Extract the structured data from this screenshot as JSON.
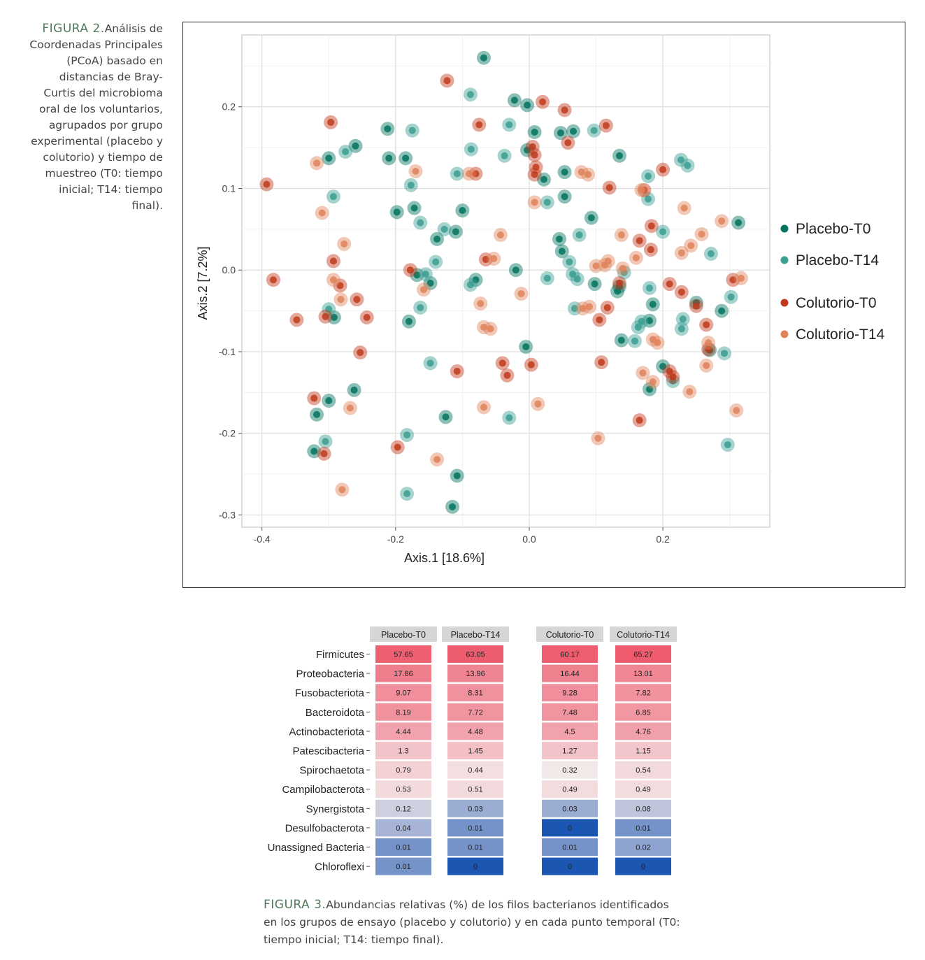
{
  "figure2": {
    "label": "FIGURA 2.",
    "caption": "Análisis de Coordenadas Principales (PCoA) basado en distancias de Bray-Curtis del microbioma oral de los voluntarios, agrupados por grupo experimental (placebo y colutorio) y tiempo de muestreo (T0: tiempo inicial; T14: tiempo final)."
  },
  "figure3": {
    "label": "FIGURA 3.",
    "caption": "Abundancias relativas (%) de los filos bacterianos identificados en los grupos de ensayo (placebo y colutorio) y en cada punto temporal (T0: tiempo inicial; T14: tiempo final)."
  },
  "colors": {
    "Placebo-T0": "#00735f",
    "Placebo-T14": "#3a9e92",
    "Colutorio-T0": "#c0391b",
    "Colutorio-T14": "#e0825a",
    "heat_high": "#ee5b6e",
    "heat_mid": "#f3e8e8",
    "heat_low": "#1c56b3"
  },
  "chart_data": [
    {
      "type": "scatter",
      "title": "",
      "xlabel": "Axis.1   [18.6%]",
      "ylabel": "Axis.2   [7.2%]",
      "xlim": [
        -0.43,
        0.36
      ],
      "ylim": [
        -0.315,
        0.288
      ],
      "x_ticks": [
        -0.4,
        -0.2,
        0.0,
        0.2
      ],
      "x_tick_labels": [
        "-0.4",
        "-0.2",
        "0.0",
        "0.2"
      ],
      "y_ticks": [
        0.2,
        0.1,
        0.0,
        -0.1,
        -0.2,
        -0.3
      ],
      "y_tick_labels": [
        "0.2",
        "0.1",
        "0.0",
        "-0.1",
        "-0.2",
        "-0.3"
      ],
      "grid": true,
      "legend_position": "right",
      "series": [
        {
          "name": "Placebo-T0",
          "points": [
            [
              -0.068,
              0.26
            ],
            [
              -0.022,
              0.208
            ],
            [
              -0.003,
              0.202
            ],
            [
              0.008,
              0.169
            ],
            [
              0.047,
              0.168
            ],
            [
              0.066,
              0.17
            ],
            [
              -0.212,
              0.173
            ],
            [
              -0.26,
              0.152
            ],
            [
              -0.3,
              0.137
            ],
            [
              -0.21,
              0.137
            ],
            [
              -0.185,
              0.137
            ],
            [
              -0.003,
              0.147
            ],
            [
              0.135,
              0.14
            ],
            [
              0.022,
              0.111
            ],
            [
              0.053,
              0.12
            ],
            [
              0.053,
              0.09
            ],
            [
              -0.172,
              0.076
            ],
            [
              -0.198,
              0.071
            ],
            [
              -0.1,
              0.073
            ],
            [
              0.093,
              0.064
            ],
            [
              0.313,
              0.058
            ],
            [
              -0.11,
              0.047
            ],
            [
              -0.138,
              0.038
            ],
            [
              0.045,
              0.038
            ],
            [
              0.049,
              0.023
            ],
            [
              -0.02,
              0
            ],
            [
              -0.168,
              -0.006
            ],
            [
              -0.148,
              -0.016
            ],
            [
              -0.08,
              -0.012
            ],
            [
              0.098,
              -0.017
            ],
            [
              0.132,
              -0.026
            ],
            [
              0.135,
              -0.02
            ],
            [
              0.185,
              -0.042
            ],
            [
              0.25,
              -0.04
            ],
            [
              0.288,
              -0.05
            ],
            [
              -0.292,
              -0.058
            ],
            [
              -0.18,
              -0.063
            ],
            [
              0.18,
              -0.062
            ],
            [
              0.138,
              -0.086
            ],
            [
              -0.005,
              -0.094
            ],
            [
              0.27,
              -0.098
            ],
            [
              0.2,
              -0.118
            ],
            [
              -0.262,
              -0.147
            ],
            [
              0.18,
              -0.146
            ],
            [
              -0.3,
              -0.16
            ],
            [
              -0.318,
              -0.177
            ],
            [
              -0.125,
              -0.18
            ],
            [
              -0.322,
              -0.222
            ],
            [
              -0.108,
              -0.252
            ],
            [
              -0.115,
              -0.29
            ]
          ]
        },
        {
          "name": "Placebo-T14",
          "points": [
            [
              -0.088,
              0.215
            ],
            [
              -0.03,
              0.178
            ],
            [
              -0.175,
              0.171
            ],
            [
              0.097,
              0.171
            ],
            [
              -0.275,
              0.145
            ],
            [
              -0.087,
              0.148
            ],
            [
              -0.108,
              0.118
            ],
            [
              -0.037,
              0.14
            ],
            [
              0.227,
              0.135
            ],
            [
              0.237,
              0.128
            ],
            [
              -0.177,
              0.104
            ],
            [
              0.178,
              0.115
            ],
            [
              -0.293,
              0.09
            ],
            [
              0.178,
              0.087
            ],
            [
              0.027,
              0.083
            ],
            [
              -0.163,
              0.058
            ],
            [
              -0.127,
              0.05
            ],
            [
              0.075,
              0.043
            ],
            [
              0.2,
              0.047
            ],
            [
              0.272,
              0.02
            ],
            [
              -0.14,
              0.01
            ],
            [
              0.06,
              0.01
            ],
            [
              0.065,
              -0.005
            ],
            [
              0.072,
              -0.011
            ],
            [
              0.027,
              -0.01
            ],
            [
              -0.155,
              -0.005
            ],
            [
              -0.088,
              -0.018
            ],
            [
              0.142,
              -0.003
            ],
            [
              0.18,
              -0.022
            ],
            [
              -0.3,
              -0.048
            ],
            [
              -0.163,
              -0.046
            ],
            [
              0.068,
              -0.047
            ],
            [
              0.302,
              -0.033
            ],
            [
              0.23,
              -0.06
            ],
            [
              0.168,
              -0.063
            ],
            [
              0.163,
              -0.07
            ],
            [
              0.228,
              -0.072
            ],
            [
              0.158,
              -0.087
            ],
            [
              0.292,
              -0.102
            ],
            [
              -0.148,
              -0.114
            ],
            [
              0.215,
              -0.136
            ],
            [
              -0.305,
              -0.21
            ],
            [
              -0.183,
              -0.202
            ],
            [
              -0.03,
              -0.181
            ],
            [
              0.297,
              -0.214
            ],
            [
              -0.183,
              -0.274
            ]
          ]
        },
        {
          "name": "Colutorio-T0",
          "points": [
            [
              -0.123,
              0.232
            ],
            [
              0.02,
              0.206
            ],
            [
              0.053,
              0.196
            ],
            [
              -0.297,
              0.181
            ],
            [
              -0.075,
              0.178
            ],
            [
              0.115,
              0.177
            ],
            [
              0.058,
              0.156
            ],
            [
              0.005,
              0.151
            ],
            [
              0.008,
              0.141
            ],
            [
              0.01,
              0.126
            ],
            [
              0.008,
              0.117
            ],
            [
              -0.08,
              0.118
            ],
            [
              0.12,
              0.101
            ],
            [
              0.172,
              0.098
            ],
            [
              0.2,
              0.123
            ],
            [
              -0.393,
              0.105
            ],
            [
              0.183,
              0.054
            ],
            [
              0.165,
              0.036
            ],
            [
              0.182,
              0.025
            ],
            [
              -0.065,
              0.013
            ],
            [
              -0.293,
              0.011
            ],
            [
              -0.178,
              0
            ],
            [
              0.305,
              -0.012
            ],
            [
              -0.383,
              -0.012
            ],
            [
              -0.283,
              -0.019
            ],
            [
              0.21,
              -0.017
            ],
            [
              0.228,
              -0.027
            ],
            [
              0.135,
              -0.016
            ],
            [
              -0.258,
              -0.036
            ],
            [
              0.117,
              -0.046
            ],
            [
              0.25,
              -0.044
            ],
            [
              -0.305,
              -0.057
            ],
            [
              -0.243,
              -0.058
            ],
            [
              -0.348,
              -0.061
            ],
            [
              0.105,
              -0.061
            ],
            [
              0.265,
              -0.067
            ],
            [
              0.268,
              -0.097
            ],
            [
              -0.253,
              -0.101
            ],
            [
              -0.04,
              -0.114
            ],
            [
              0.003,
              -0.116
            ],
            [
              0.108,
              -0.113
            ],
            [
              -0.108,
              -0.124
            ],
            [
              -0.033,
              -0.129
            ],
            [
              0.21,
              -0.124
            ],
            [
              0.215,
              -0.131
            ],
            [
              -0.322,
              -0.157
            ],
            [
              0.165,
              -0.184
            ],
            [
              -0.197,
              -0.217
            ],
            [
              -0.307,
              -0.225
            ]
          ]
        },
        {
          "name": "Colutorio-T14",
          "points": [
            [
              -0.318,
              0.131
            ],
            [
              -0.17,
              0.121
            ],
            [
              -0.09,
              0.118
            ],
            [
              0.078,
              0.12
            ],
            [
              0.088,
              0.117
            ],
            [
              0.168,
              0.098
            ],
            [
              0.232,
              0.076
            ],
            [
              -0.31,
              0.07
            ],
            [
              0.008,
              0.083
            ],
            [
              0.288,
              0.06
            ],
            [
              0.258,
              0.044
            ],
            [
              0.138,
              0.043
            ],
            [
              -0.043,
              0.043
            ],
            [
              -0.277,
              0.032
            ],
            [
              0.228,
              0.021
            ],
            [
              0.242,
              0.03
            ],
            [
              0.16,
              0.015
            ],
            [
              0.1,
              0.005
            ],
            [
              0.113,
              0.006
            ],
            [
              0.118,
              0.011
            ],
            [
              -0.053,
              0.014
            ],
            [
              0.317,
              -0.01
            ],
            [
              -0.293,
              -0.012
            ],
            [
              -0.158,
              -0.024
            ],
            [
              -0.012,
              -0.029
            ],
            [
              0.14,
              0.002
            ],
            [
              -0.282,
              -0.036
            ],
            [
              -0.073,
              -0.041
            ],
            [
              0.08,
              -0.047
            ],
            [
              0.09,
              -0.045
            ],
            [
              -0.068,
              -0.07
            ],
            [
              -0.058,
              -0.072
            ],
            [
              0.185,
              -0.085
            ],
            [
              0.192,
              -0.089
            ],
            [
              0.268,
              -0.089
            ],
            [
              0.265,
              -0.117
            ],
            [
              0.17,
              -0.126
            ],
            [
              0.185,
              -0.137
            ],
            [
              -0.068,
              -0.168
            ],
            [
              0.013,
              -0.164
            ],
            [
              -0.268,
              -0.169
            ],
            [
              0.31,
              -0.172
            ],
            [
              0.24,
              -0.149
            ],
            [
              0.103,
              -0.206
            ],
            [
              -0.138,
              -0.232
            ],
            [
              -0.28,
              -0.269
            ]
          ]
        }
      ]
    },
    {
      "type": "heatmap",
      "title": "",
      "columns": [
        "Placebo-T0",
        "Placebo-T14",
        "Colutorio-T0",
        "Colutorio-T14"
      ],
      "rows": [
        "Firmicutes",
        "Proteobacteria",
        "Fusobacteriota",
        "Bacteroidota",
        "Actinobacteriota",
        "Patescibacteria",
        "Spirochaetota",
        "Campilobacterota",
        "Synergistota",
        "Desulfobacterota",
        "Unassigned Bacteria",
        "Chloroflexi"
      ],
      "values": [
        [
          57.65,
          63.05,
          60.17,
          65.27
        ],
        [
          17.86,
          13.96,
          16.44,
          13.01
        ],
        [
          9.07,
          8.31,
          9.28,
          7.82
        ],
        [
          8.19,
          7.72,
          7.48,
          6.85
        ],
        [
          4.44,
          4.48,
          4.5,
          4.76
        ],
        [
          1.3,
          1.45,
          1.27,
          1.15
        ],
        [
          0.79,
          0.44,
          0.32,
          0.54
        ],
        [
          0.53,
          0.51,
          0.49,
          0.49
        ],
        [
          0.12,
          0.03,
          0.03,
          0.08
        ],
        [
          0.04,
          0.01,
          0,
          0.01
        ],
        [
          0.01,
          0.01,
          0.01,
          0.02
        ],
        [
          0.01,
          0,
          0,
          0
        ]
      ],
      "labels": [
        [
          "57.65",
          "63.05",
          "60.17",
          "65.27"
        ],
        [
          "17.86",
          "13.96",
          "16.44",
          "13.01"
        ],
        [
          "9.07",
          "8.31",
          "9.28",
          "7.82"
        ],
        [
          "8.19",
          "7.72",
          "7.48",
          "6.85"
        ],
        [
          "4.44",
          "4.48",
          "4.5",
          "4.76"
        ],
        [
          "1.3",
          "1.45",
          "1.27",
          "1.15"
        ],
        [
          "0.79",
          "0.44",
          "0.32",
          "0.54"
        ],
        [
          "0.53",
          "0.51",
          "0.49",
          "0.49"
        ],
        [
          "0.12",
          "0.03",
          "0.03",
          "0.08"
        ],
        [
          "0.04",
          "0.01",
          "0",
          "0.01"
        ],
        [
          "0.01",
          "0.01",
          "0.01",
          "0.02"
        ],
        [
          "0.01",
          "0",
          "0",
          "0"
        ]
      ]
    }
  ]
}
